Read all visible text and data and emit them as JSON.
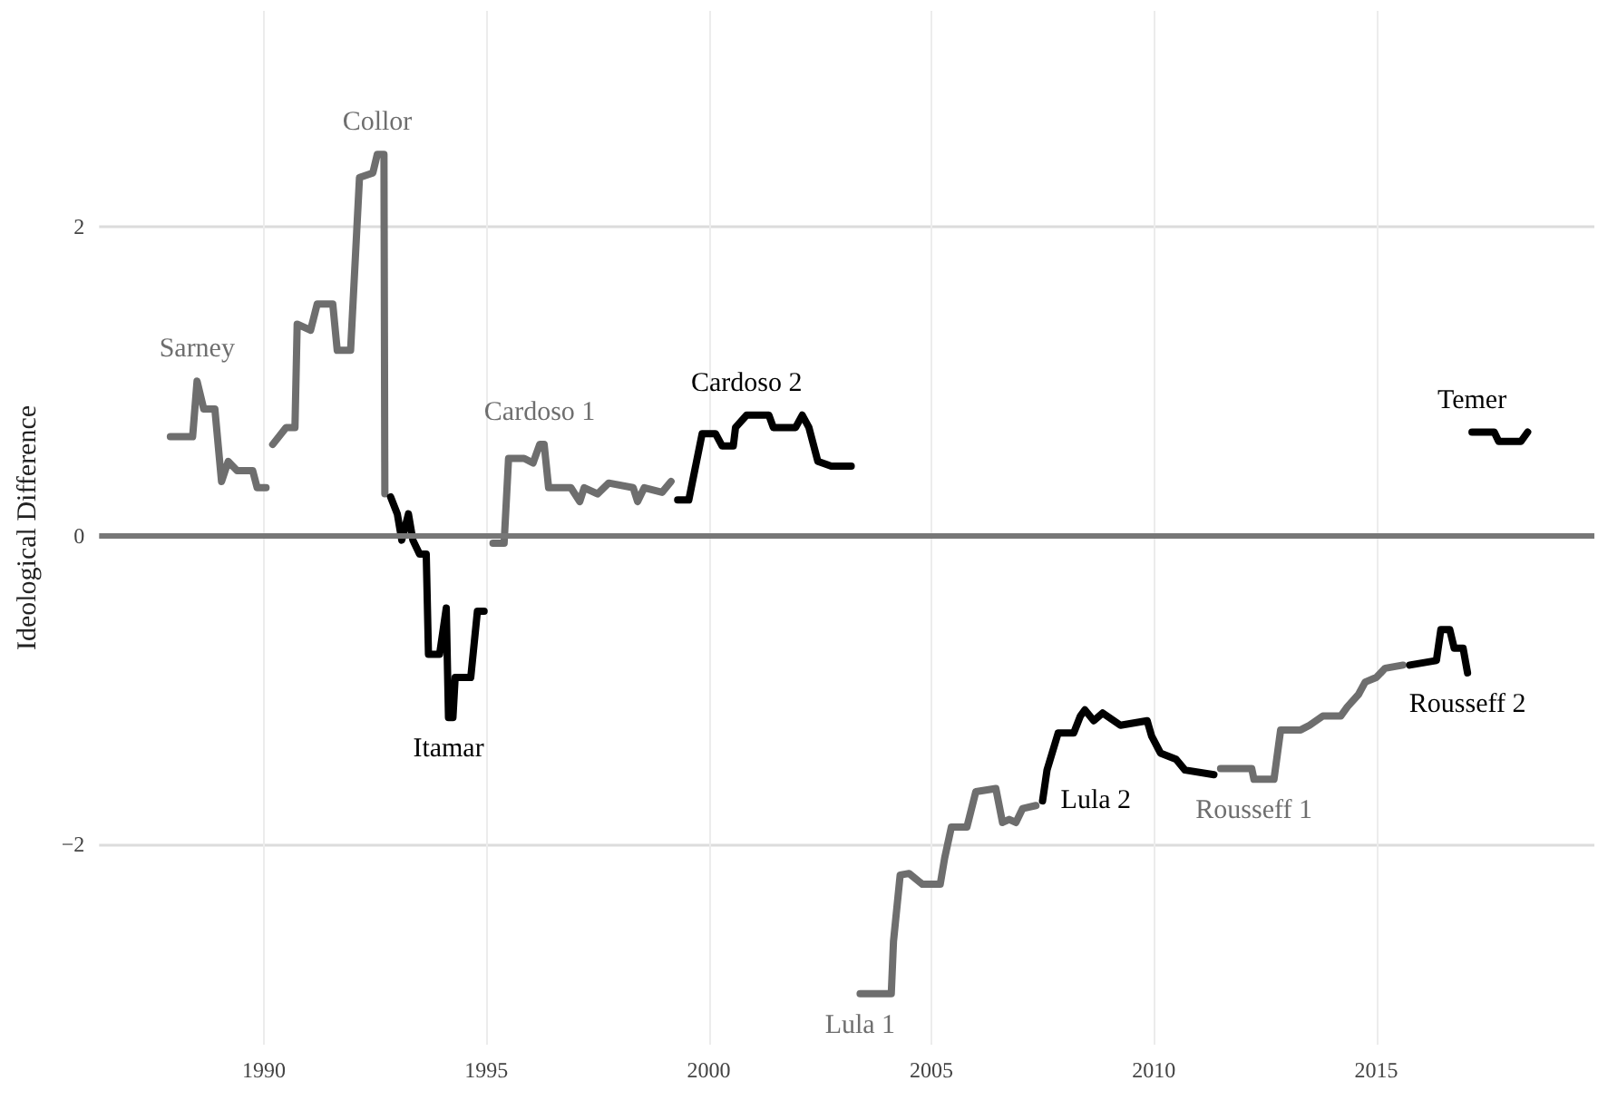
{
  "chart_data": {
    "type": "line",
    "ylabel": "Ideological Difference",
    "xlim": [
      1986.3,
      2019.9
    ],
    "ylim": [
      -3.3,
      3.4
    ],
    "xticks": [
      1990,
      1995,
      2000,
      2005,
      2010,
      2015
    ],
    "yticks": [
      {
        "value": -2,
        "label": "−2"
      },
      0,
      2
    ],
    "grid": true,
    "legend": false,
    "marker": "none",
    "line_style": "solid",
    "ref_lines": [
      {
        "axis": "y",
        "value": 0,
        "label": null,
        "color": "#777777"
      }
    ],
    "series": [
      {
        "name": "Sarney",
        "color": "#6e6e6e",
        "x": [
          1987.9,
          1988.4,
          1988.5,
          1988.65,
          1988.9,
          1989.05,
          1989.2,
          1989.4,
          1989.75,
          1989.85,
          1990.05
        ],
        "values": [
          0.64,
          0.64,
          1.0,
          0.82,
          0.82,
          0.35,
          0.48,
          0.42,
          0.42,
          0.31,
          0.31
        ]
      },
      {
        "name": "Collor",
        "color": "#6e6e6e",
        "x": [
          1990.2,
          1990.5,
          1990.7,
          1990.75,
          1991.05,
          1991.2,
          1991.55,
          1991.65,
          1991.95,
          1992.15,
          1992.45,
          1992.55,
          1992.7,
          1992.72
        ],
        "values": [
          0.59,
          0.7,
          0.7,
          1.37,
          1.33,
          1.5,
          1.5,
          1.2,
          1.2,
          2.32,
          2.35,
          2.47,
          2.47,
          0.27
        ]
      },
      {
        "name": "Itamar",
        "color": "#000000",
        "x": [
          1992.85,
          1993.0,
          1993.1,
          1993.25,
          1993.35,
          1993.5,
          1993.65,
          1993.7,
          1993.95,
          1994.1,
          1994.15,
          1994.25,
          1994.3,
          1994.65,
          1994.8,
          1994.95
        ],
        "values": [
          0.25,
          0.14,
          -0.03,
          0.14,
          -0.03,
          -0.12,
          -0.12,
          -0.77,
          -0.77,
          -0.47,
          -1.18,
          -1.18,
          -0.92,
          -0.92,
          -0.49,
          -0.49
        ]
      },
      {
        "name": "Cardoso 1",
        "color": "#6e6e6e",
        "x": [
          1995.15,
          1995.4,
          1995.5,
          1995.85,
          1996.05,
          1996.2,
          1996.3,
          1996.4,
          1996.9,
          1997.1,
          1997.2,
          1997.5,
          1997.75,
          1998.3,
          1998.4,
          1998.55,
          1998.95,
          1999.15
        ],
        "values": [
          -0.05,
          -0.05,
          0.5,
          0.5,
          0.47,
          0.59,
          0.59,
          0.31,
          0.31,
          0.22,
          0.31,
          0.27,
          0.34,
          0.31,
          0.22,
          0.31,
          0.28,
          0.35
        ]
      },
      {
        "name": "Cardoso 2",
        "color": "#000000",
        "x": [
          1999.3,
          1999.55,
          1999.85,
          2000.15,
          2000.3,
          2000.55,
          2000.6,
          2000.85,
          2001.35,
          2001.45,
          2001.95,
          2002.1,
          2002.25,
          2002.45,
          2002.75,
          2003.2
        ],
        "values": [
          0.23,
          0.23,
          0.66,
          0.66,
          0.58,
          0.58,
          0.7,
          0.78,
          0.78,
          0.7,
          0.7,
          0.78,
          0.7,
          0.48,
          0.45,
          0.45
        ]
      },
      {
        "name": "Lula 1",
        "color": "#6e6e6e",
        "x": [
          2003.4,
          2004.1,
          2004.15,
          2004.3,
          2004.5,
          2004.8,
          2005.2,
          2005.3,
          2005.45,
          2005.8,
          2006.0,
          2006.45,
          2006.6,
          2006.75,
          2006.9,
          2007.05,
          2007.35
        ],
        "values": [
          -2.97,
          -2.97,
          -2.63,
          -2.2,
          -2.19,
          -2.26,
          -2.26,
          -2.09,
          -1.89,
          -1.89,
          -1.66,
          -1.64,
          -1.86,
          -1.84,
          -1.86,
          -1.77,
          -1.75
        ]
      },
      {
        "name": "Lula 2",
        "color": "#000000",
        "x": [
          2007.5,
          2007.6,
          2007.85,
          2008.2,
          2008.35,
          2008.45,
          2008.65,
          2008.85,
          2009.25,
          2009.85,
          2009.95,
          2010.15,
          2010.5,
          2010.7,
          2011.35
        ],
        "values": [
          -1.72,
          -1.52,
          -1.28,
          -1.28,
          -1.17,
          -1.13,
          -1.2,
          -1.15,
          -1.23,
          -1.2,
          -1.3,
          -1.41,
          -1.45,
          -1.52,
          -1.55
        ]
      },
      {
        "name": "Rousseff 1",
        "color": "#6e6e6e",
        "x": [
          2011.5,
          2012.2,
          2012.25,
          2012.7,
          2012.85,
          2013.3,
          2013.5,
          2013.8,
          2014.2,
          2014.35,
          2014.6,
          2014.75,
          2015.0,
          2015.2,
          2015.6
        ],
        "values": [
          -1.51,
          -1.51,
          -1.58,
          -1.58,
          -1.26,
          -1.26,
          -1.23,
          -1.17,
          -1.17,
          -1.11,
          -1.03,
          -0.95,
          -0.92,
          -0.86,
          -0.84
        ]
      },
      {
        "name": "Rousseff 2",
        "color": "#000000",
        "x": [
          2015.75,
          2016.35,
          2016.45,
          2016.65,
          2016.75,
          2016.95,
          2017.05
        ],
        "values": [
          -0.84,
          -0.81,
          -0.61,
          -0.61,
          -0.73,
          -0.73,
          -0.89
        ]
      },
      {
        "name": "Temer",
        "color": "#000000",
        "x": [
          2017.15,
          2017.65,
          2017.75,
          2018.25,
          2018.4
        ],
        "values": [
          0.67,
          0.67,
          0.61,
          0.61,
          0.67
        ]
      }
    ]
  }
}
